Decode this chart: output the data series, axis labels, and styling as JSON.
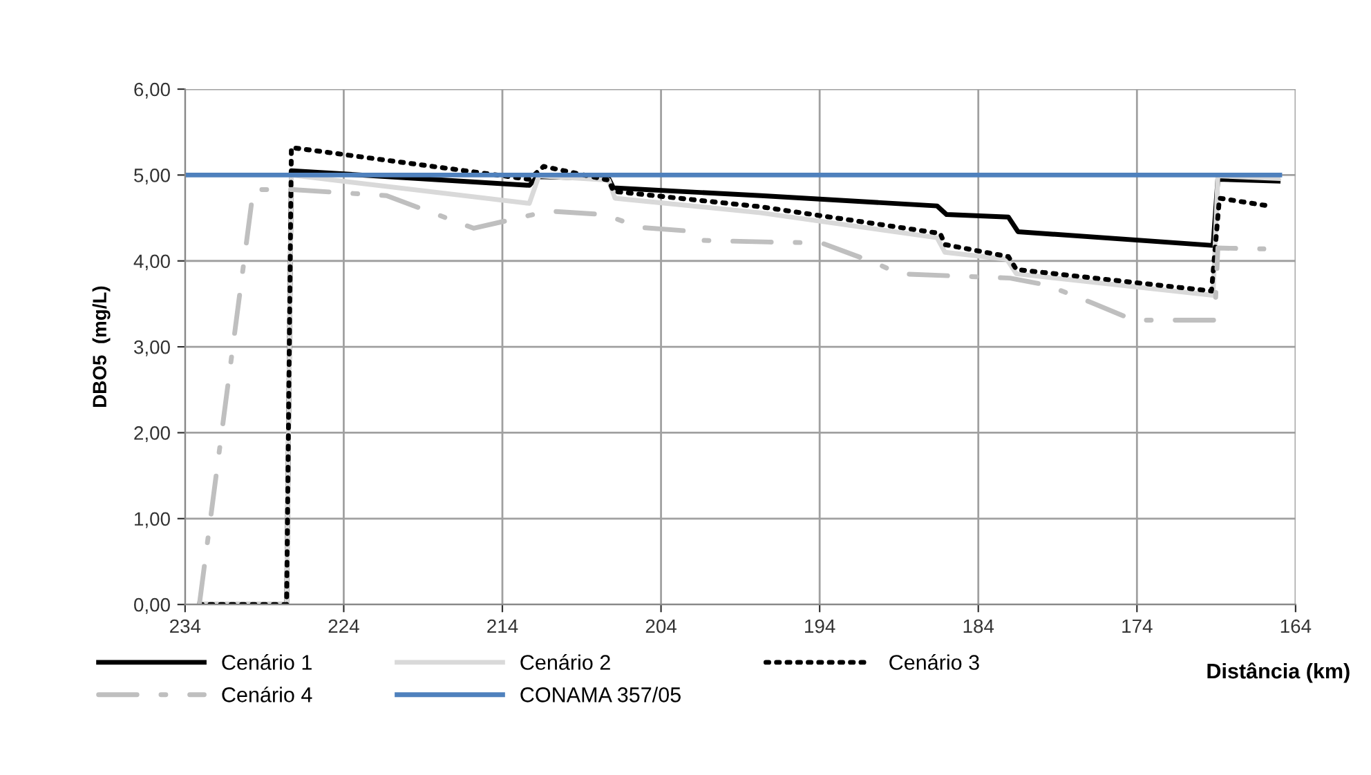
{
  "chart_data": {
    "type": "line",
    "xlabel": "Distância (km)",
    "ylabel": "DBO5  (mg/L)",
    "xlim": [
      234,
      164
    ],
    "xticks": [
      234,
      224,
      214,
      204,
      194,
      184,
      174,
      164
    ],
    "ylim": [
      0,
      6
    ],
    "yticks": [
      {
        "value": 0,
        "label": "0,00"
      },
      {
        "value": 1,
        "label": "1,00"
      },
      {
        "value": 2,
        "label": "2,00"
      },
      {
        "value": 3,
        "label": "3,00"
      },
      {
        "value": 4,
        "label": "4,00"
      },
      {
        "value": 5,
        "label": "5,00"
      },
      {
        "value": 6,
        "label": "6,00"
      }
    ],
    "grid": true,
    "legend": "bottom",
    "series": [
      {
        "name": "Cenário 1",
        "color": "#000000",
        "line_style": "solid",
        "x": [
          233.1,
          227.6,
          227.3,
          212.3,
          211.8,
          207.3,
          207.0,
          197.7,
          186.6,
          186.0,
          182.1,
          181.5,
          169.2,
          168.9,
          165.1
        ],
        "values": [
          0,
          0,
          5.05,
          4.88,
          4.98,
          4.96,
          4.85,
          4.76,
          4.64,
          4.54,
          4.51,
          4.34,
          4.18,
          4.95,
          4.93
        ]
      },
      {
        "name": "Cenário 2",
        "color": "#d9d9d9",
        "line_style": "solid",
        "x": [
          233.1,
          227.6,
          227.3,
          212.3,
          211.7,
          207.3,
          206.9,
          197.7,
          186.6,
          186.1,
          182.2,
          181.6,
          169.2,
          168.9,
          165.1
        ],
        "values": [
          0,
          0,
          5.0,
          4.67,
          4.99,
          4.94,
          4.73,
          4.56,
          4.27,
          4.1,
          4.02,
          3.85,
          3.6,
          4.99,
          4.96
        ]
      },
      {
        "name": "Cenário 3",
        "color": "#000000",
        "line_style": "dotted",
        "x": [
          233.1,
          227.6,
          227.3,
          212.3,
          211.4,
          207.3,
          207.0,
          197.7,
          186.4,
          186.1,
          182.1,
          181.6,
          169.3,
          168.8,
          165.7
        ],
        "values": [
          0,
          0,
          5.32,
          4.95,
          5.1,
          4.94,
          4.81,
          4.63,
          4.32,
          4.19,
          4.05,
          3.9,
          3.65,
          4.73,
          4.64
        ]
      },
      {
        "name": "Cenário 4",
        "color": "#bfbfbf",
        "line_style": "dashdot",
        "x": [
          233.1,
          229.7,
          227.2,
          221.3,
          215.8,
          211.1,
          207.6,
          205.3,
          202.4,
          201.6,
          197.2,
          193.9,
          190.4,
          189.0,
          182.0,
          179.7,
          176.8,
          174.2,
          169.1,
          168.9,
          166.0
        ],
        "values": [
          0,
          4.83,
          4.83,
          4.76,
          4.38,
          4.58,
          4.54,
          4.39,
          4.35,
          4.24,
          4.22,
          4.21,
          3.97,
          3.85,
          3.8,
          3.72,
          3.51,
          3.31,
          3.31,
          4.15,
          4.14
        ]
      },
      {
        "name": "CONAMA 357/05",
        "color": "#4f81bd",
        "line_style": "solid",
        "x": [
          234,
          165
        ],
        "values": [
          5,
          5
        ]
      }
    ]
  }
}
